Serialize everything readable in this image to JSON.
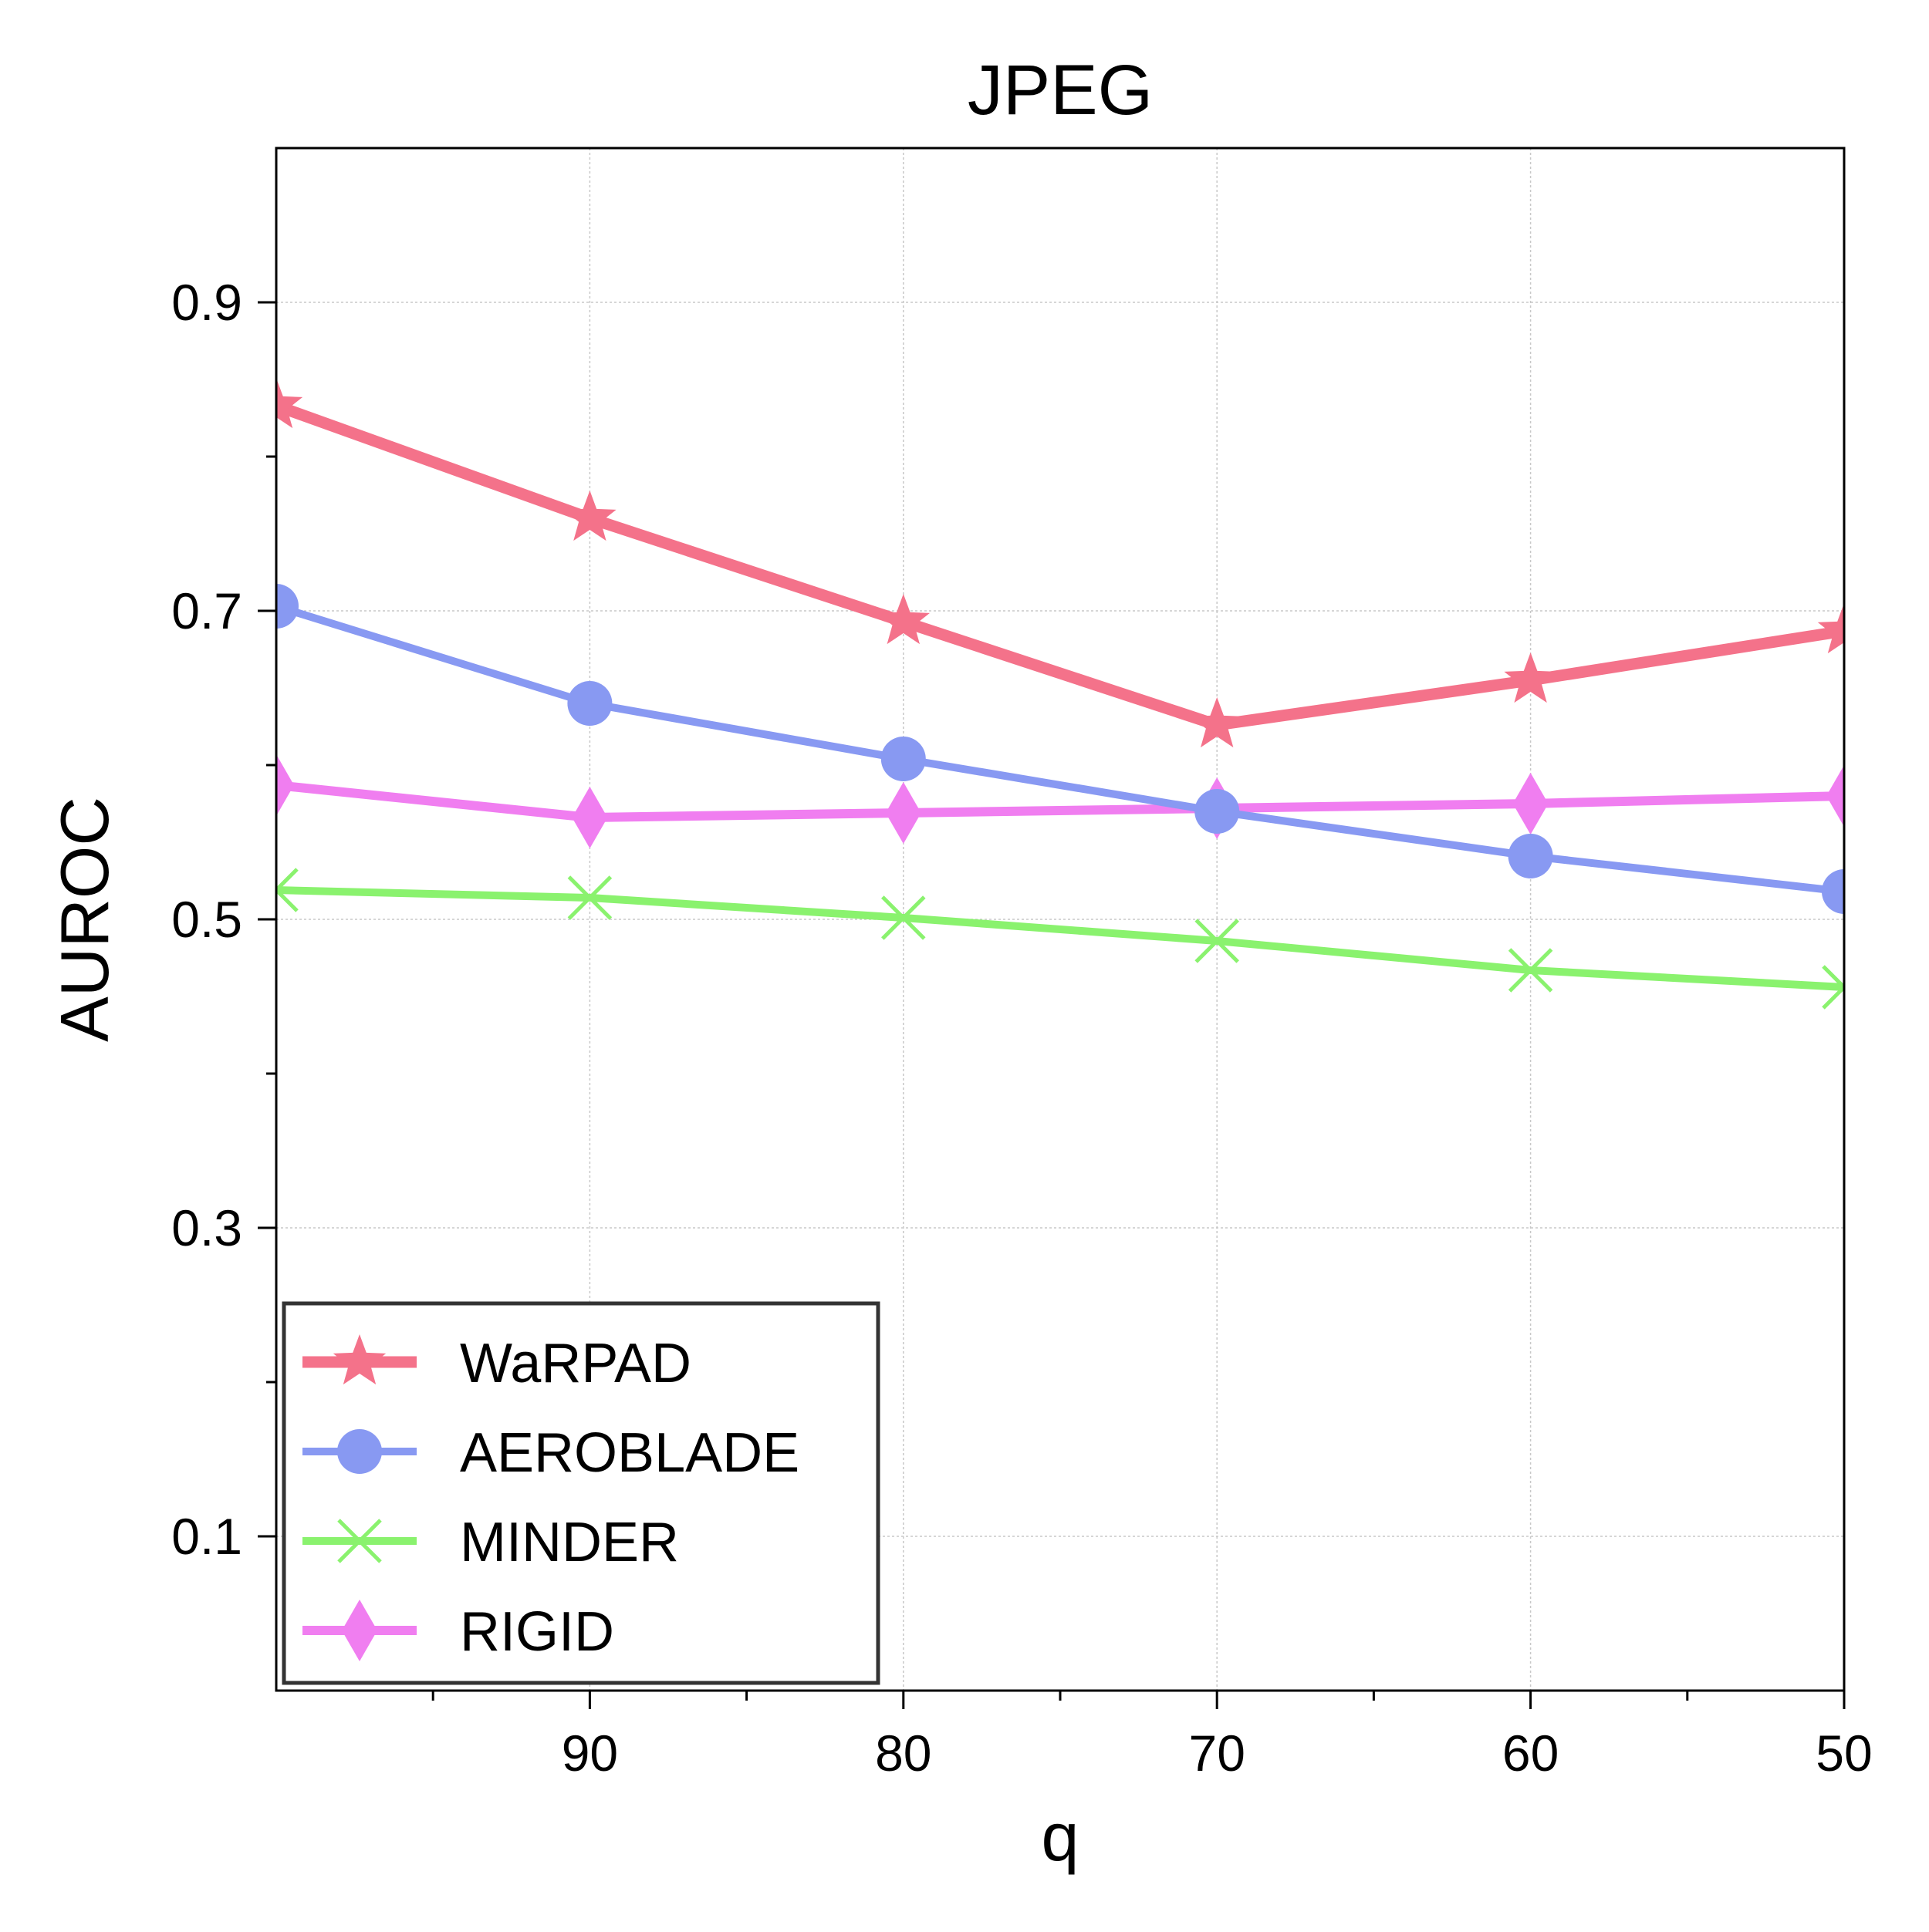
{
  "chart_data": {
    "type": "line",
    "title": "JPEG",
    "xlabel": "q",
    "ylabel": "AUROC",
    "x": [
      100,
      90,
      80,
      70,
      60,
      50
    ],
    "xlim": [
      100,
      50
    ],
    "ylim": [
      0.0,
      1.0
    ],
    "x_ticks": [
      90,
      80,
      70,
      60,
      50
    ],
    "x_tick_labels": [
      "90",
      "80",
      "70",
      "60",
      "50"
    ],
    "x_minor_ticks": [
      95,
      85,
      75,
      65,
      55
    ],
    "y_ticks": [
      0.1,
      0.3,
      0.5,
      0.7,
      0.9
    ],
    "y_tick_labels": [
      "0.1",
      "0.3",
      "0.5",
      "0.7",
      "0.9"
    ],
    "y_minor_ticks": [
      0.2,
      0.4,
      0.6,
      0.8
    ],
    "grid": true,
    "legend_position": "lower-left",
    "series": [
      {
        "name": "WaRPAD",
        "color": "#f4728a",
        "marker": "star",
        "values": [
          0.833,
          0.76,
          0.693,
          0.626,
          0.655,
          0.687
        ]
      },
      {
        "name": "AEROBLADE",
        "color": "#8899f2",
        "marker": "circle",
        "values": [
          0.703,
          0.64,
          0.604,
          0.57,
          0.541,
          0.518
        ]
      },
      {
        "name": "MINDER",
        "color": "#8af26e",
        "marker": "x",
        "values": [
          0.519,
          0.514,
          0.501,
          0.486,
          0.467,
          0.456
        ]
      },
      {
        "name": "RIGID",
        "color": "#f07ef0",
        "marker": "diamond",
        "values": [
          0.587,
          0.566,
          0.569,
          0.572,
          0.575,
          0.58
        ]
      }
    ]
  }
}
